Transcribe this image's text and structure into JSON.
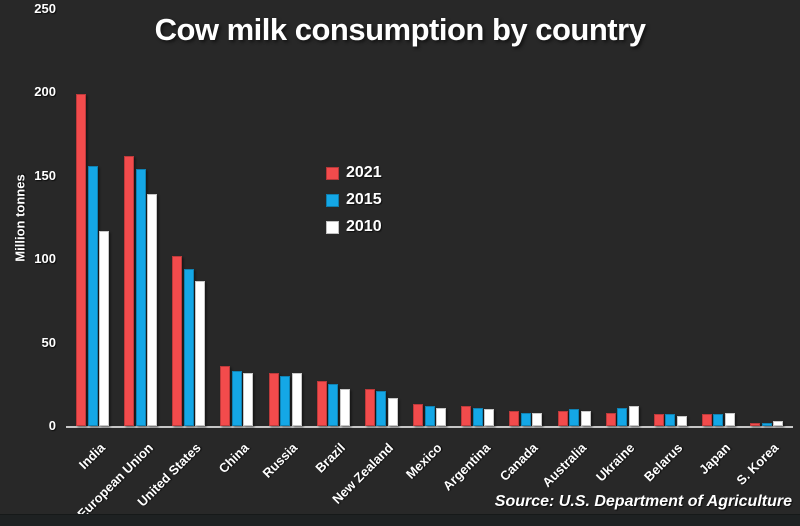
{
  "title": "Cow milk consumption by country",
  "ylabel": "Million tonnes",
  "source": "Source: U.S. Department of Agriculture",
  "colors": {
    "background": "#282828",
    "bar_2021": "#f24b4c",
    "bar_2015": "#14a7e6",
    "bar_2010": "#ffffff",
    "axis_line": "#c6c6c6",
    "text": "#ffffff",
    "footer_strip": "#1e2122"
  },
  "chart_data": {
    "type": "bar",
    "title": "Cow milk consumption by country",
    "xlabel": "",
    "ylabel": "Million tonnes",
    "ylim": [
      0,
      250
    ],
    "yticks": [
      0,
      50,
      100,
      150,
      200,
      250
    ],
    "grid": false,
    "legend_position": "upper-middle",
    "categories": [
      "India",
      "European Union",
      "United States",
      "China",
      "Russia",
      "Brazil",
      "New Zealand",
      "Mexico",
      "Argentina",
      "Canada",
      "Australia",
      "Ukraine",
      "Belarus",
      "Japan",
      "S. Korea"
    ],
    "series": [
      {
        "name": "2021",
        "color": "#f24b4c",
        "values": [
          199,
          162,
          102,
          36,
          32,
          27,
          22,
          13,
          12,
          9,
          9,
          8,
          7,
          7,
          2
        ]
      },
      {
        "name": "2015",
        "color": "#14a7e6",
        "values": [
          156,
          154,
          94,
          33,
          30,
          25,
          21,
          12,
          11,
          8,
          10,
          11,
          7,
          7,
          2
        ]
      },
      {
        "name": "2010",
        "color": "#ffffff",
        "values": [
          117,
          139,
          87,
          32,
          32,
          22,
          17,
          11,
          10,
          8,
          9,
          12,
          6,
          8,
          3
        ]
      }
    ],
    "source": "Source: U.S. Department of Agriculture"
  }
}
